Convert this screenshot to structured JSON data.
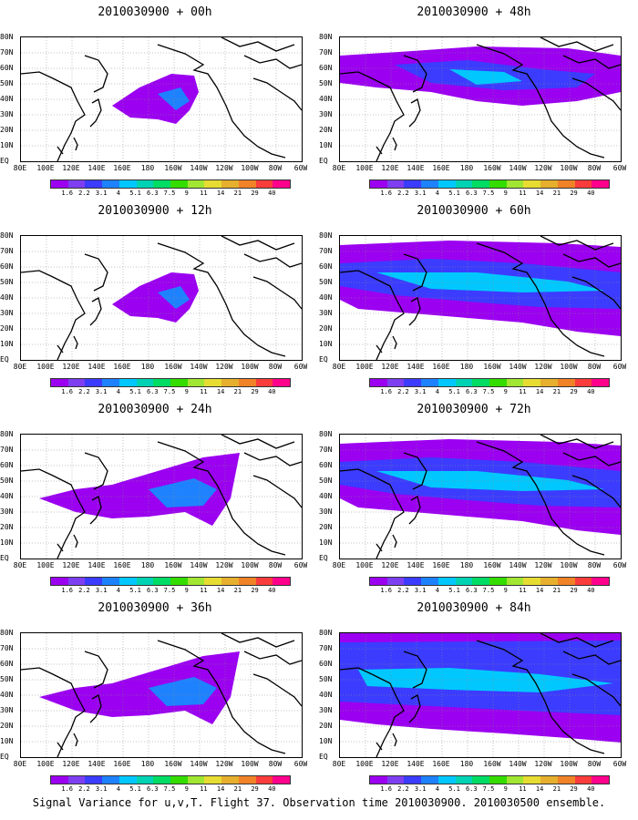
{
  "panels": [
    {
      "title": "2010030900 + 00h",
      "coverage": "low"
    },
    {
      "title": "2010030900 + 12h",
      "coverage": "low"
    },
    {
      "title": "2010030900 + 24h",
      "coverage": "mid"
    },
    {
      "title": "2010030900 + 36h",
      "coverage": "mid"
    },
    {
      "title": "2010030900 + 48h",
      "coverage": "mid-high"
    },
    {
      "title": "2010030900 + 60h",
      "coverage": "high"
    },
    {
      "title": "2010030900 + 72h",
      "coverage": "high"
    },
    {
      "title": "2010030900 + 84h",
      "coverage": "very-high"
    }
  ],
  "lat_labels": [
    "80N",
    "70N",
    "60N",
    "50N",
    "40N",
    "30N",
    "20N",
    "10N",
    "EQ"
  ],
  "lon_labels": [
    "80E",
    "100E",
    "120E",
    "140E",
    "160E",
    "180",
    "160W",
    "140W",
    "120W",
    "100W",
    "80W",
    "60W"
  ],
  "colorbar": {
    "labels": [
      "1.6",
      "2.2",
      "3.1",
      "4",
      "5.1",
      "6.3",
      "7.5",
      "9",
      "11",
      "14",
      "21",
      "29",
      "40"
    ],
    "colors": [
      "#9b00f0",
      "#7d3ff0",
      "#3c3cff",
      "#1e82ff",
      "#00c8ff",
      "#00d2b4",
      "#00dc64",
      "#34dc00",
      "#a0e632",
      "#e6dc32",
      "#e6af2d",
      "#f08228",
      "#fa3c3c",
      "#ff008c"
    ]
  },
  "footer": "Signal Variance for u,v,T. Flight 37. Observation time 2010030900. 2010030500 ensemble."
}
